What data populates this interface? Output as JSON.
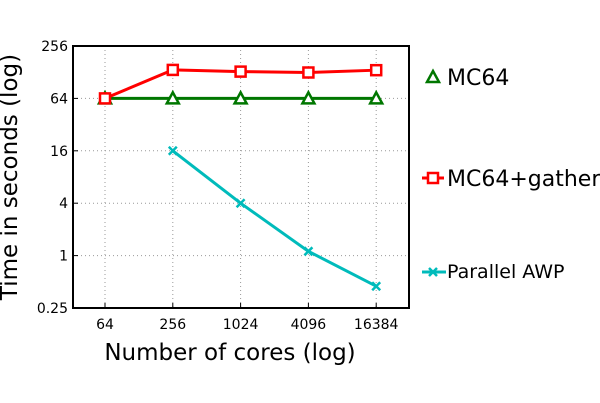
{
  "chart_data": {
    "type": "line",
    "xlabel": "Number of cores (log)",
    "ylabel": "Time in seconds (log)",
    "x": [
      64,
      256,
      1024,
      4096,
      16384
    ],
    "x_ticks": [
      "64",
      "256",
      "1024",
      "4096",
      "16384"
    ],
    "y_ticks": [
      "0.25",
      "1",
      "4",
      "16",
      "64",
      "256"
    ],
    "ylim": [
      0.25,
      256
    ],
    "y_scale": "log",
    "x_scale": "log",
    "grid": true,
    "legend_position": "right-outside",
    "series": [
      {
        "name": "MC64",
        "color": "#007700",
        "marker": "triangle",
        "values": [
          64,
          64,
          64,
          64,
          64
        ]
      },
      {
        "name": "MC64+gather",
        "color": "#ff0000",
        "marker": "square",
        "values": [
          64,
          136,
          130,
          127,
          135
        ]
      },
      {
        "name": "Parallel AWP",
        "color": "#00bbbb",
        "marker": "x",
        "values": [
          null,
          16,
          4,
          1.12,
          0.445
        ]
      }
    ]
  }
}
